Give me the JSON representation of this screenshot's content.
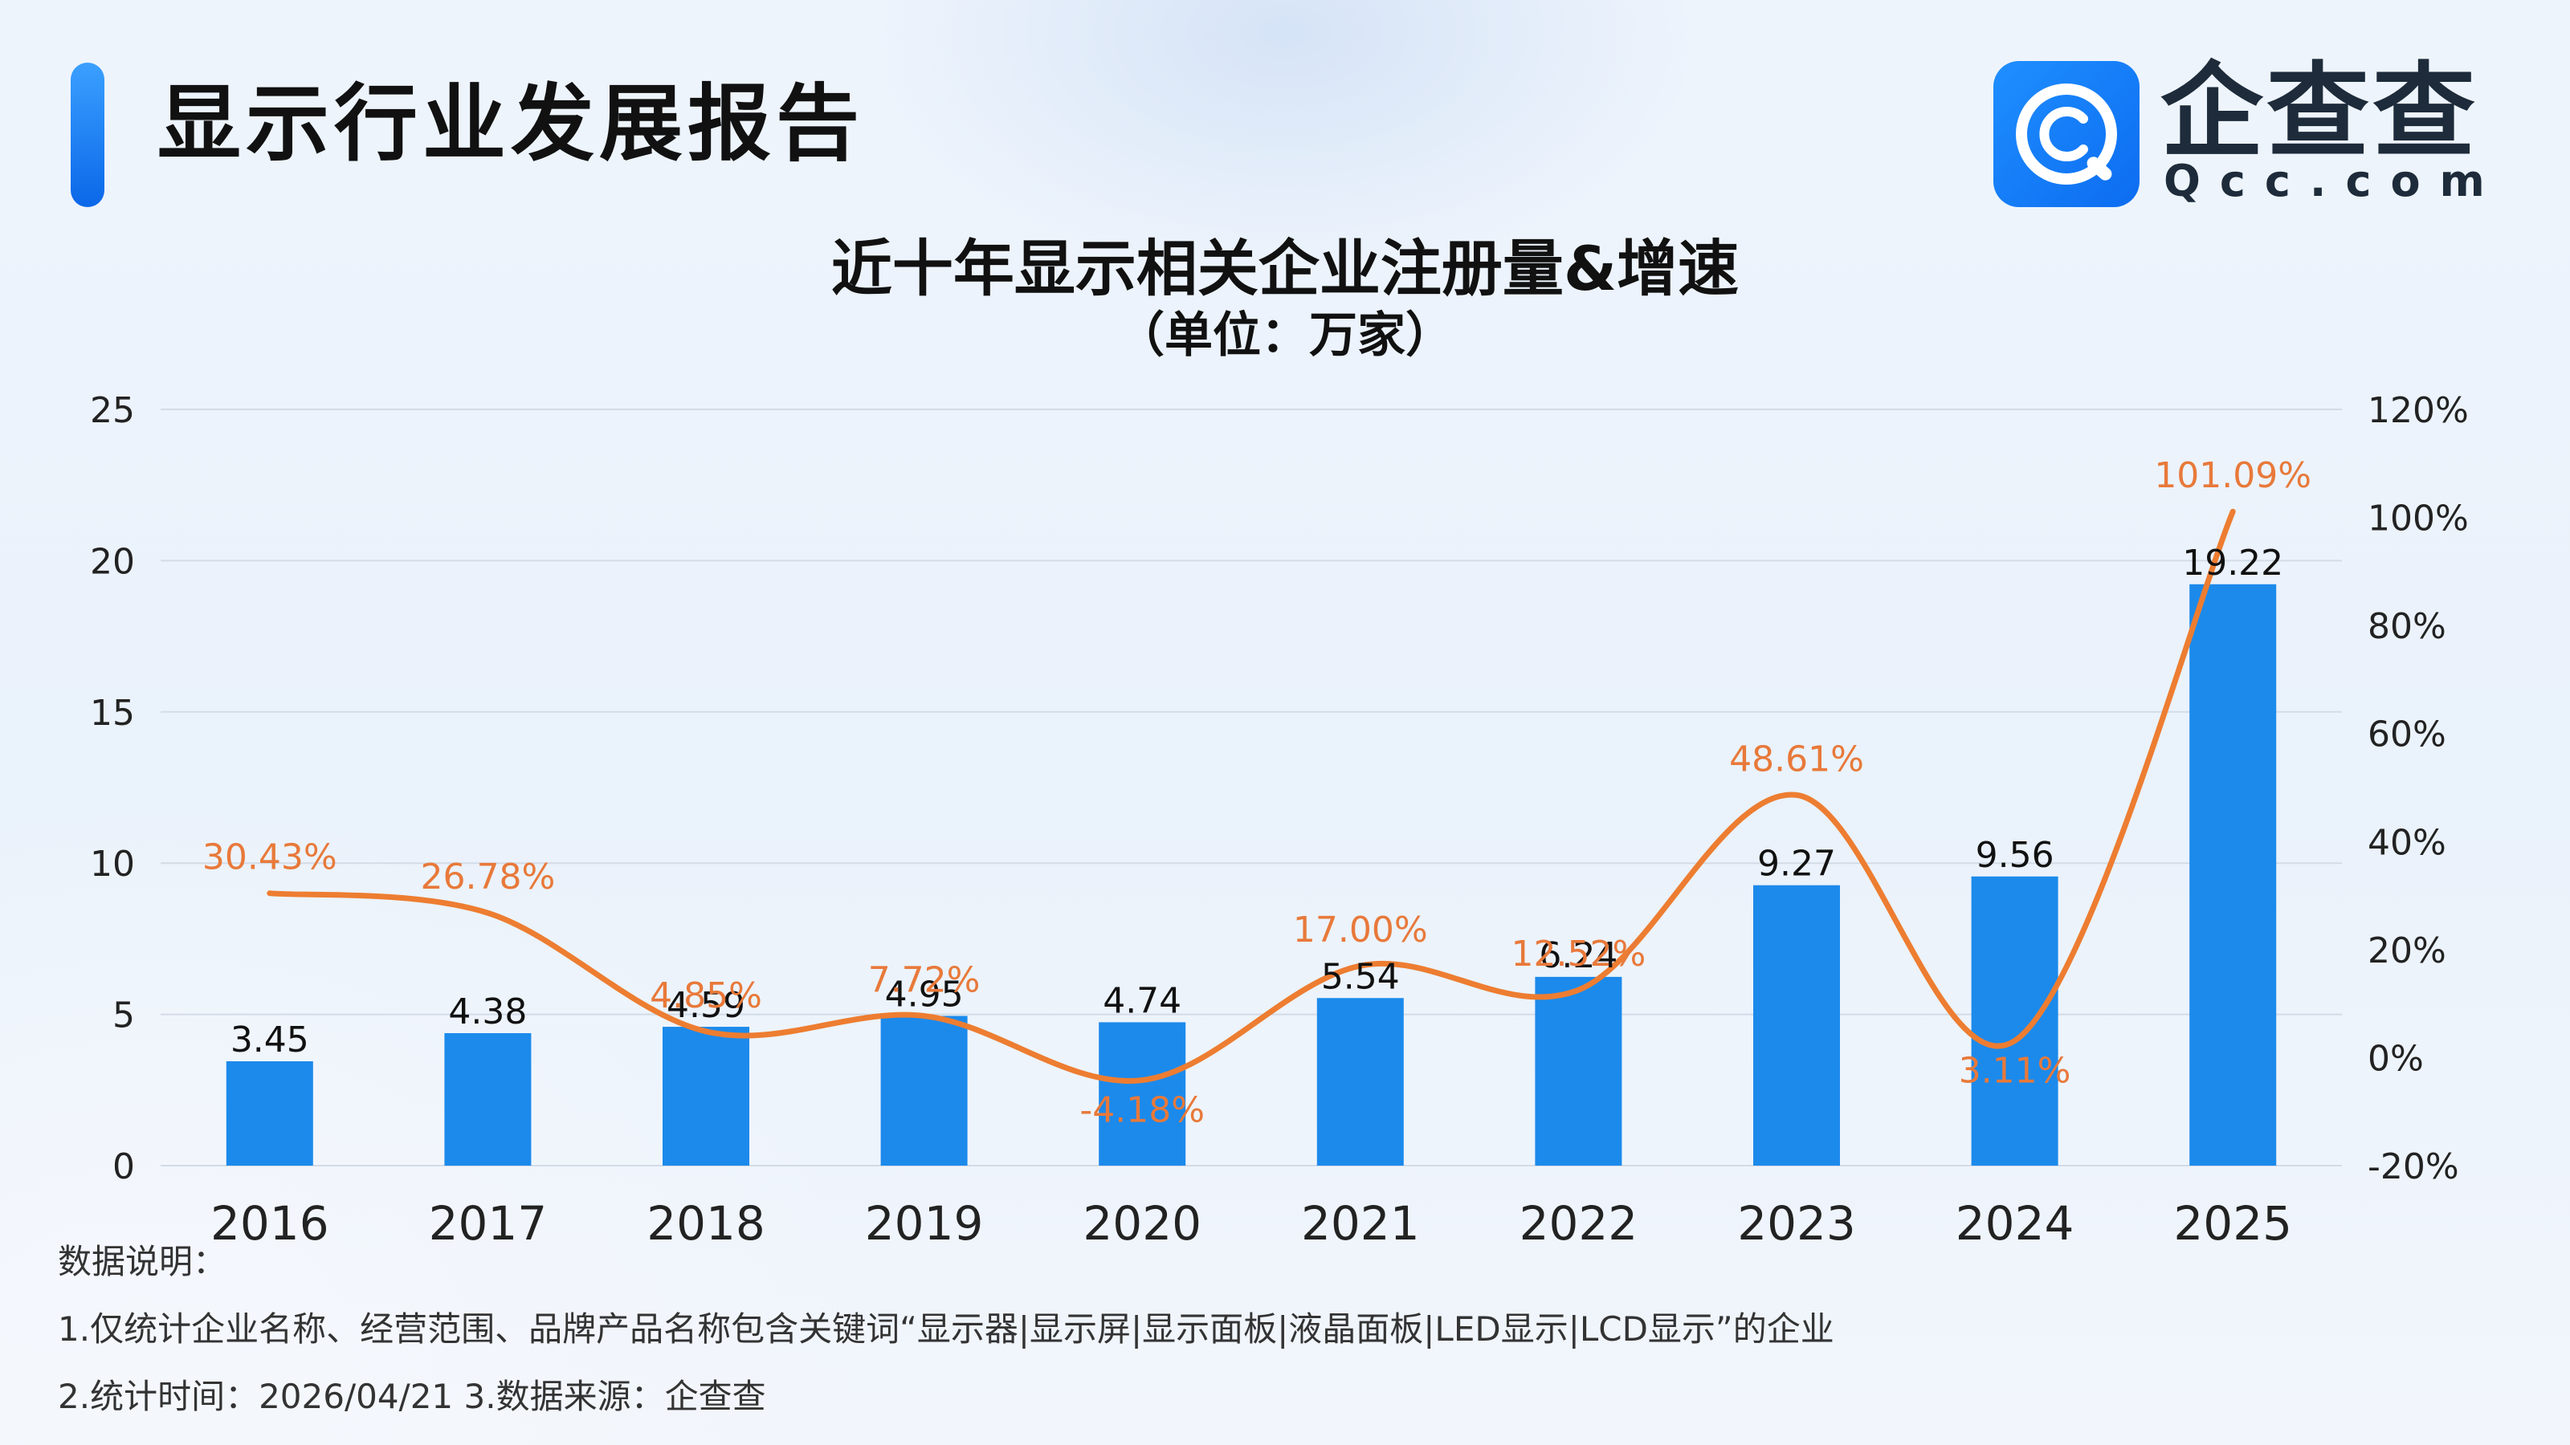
{
  "header": {
    "title": "显示行业发展报告",
    "logo_name": "企查查",
    "logo_domain": "Qcc.com",
    "logo_icon": "qcc-magnifier-icon"
  },
  "colors": {
    "accent": "#1a7fe6",
    "bar": "#1c8aeb",
    "line": "#ed7d31",
    "growth_label": "#e8793a"
  },
  "chart_data": {
    "type": "bar",
    "title": "近十年显示相关企业注册量&增速",
    "subtitle": "（单位：万家）",
    "categories": [
      "2016",
      "2017",
      "2018",
      "2019",
      "2020",
      "2021",
      "2022",
      "2023",
      "2024",
      "2025"
    ],
    "series": [
      {
        "type": "bar",
        "axis": "left",
        "values": [
          3.45,
          4.38,
          4.59,
          4.95,
          4.74,
          5.54,
          6.24,
          9.27,
          9.56,
          19.22
        ],
        "labels": [
          "3.45",
          "4.38",
          "4.59",
          "4.95",
          "4.74",
          "5.54",
          "6.24",
          "9.27",
          "9.56",
          "19.22"
        ]
      },
      {
        "type": "line",
        "axis": "right",
        "smooth": true,
        "values": [
          30.43,
          26.78,
          4.85,
          7.72,
          -4.18,
          17.0,
          12.52,
          48.61,
          3.11,
          101.09
        ],
        "labels": [
          "30.43%",
          "26.78%",
          "4.85%",
          "7.72%",
          "-4.18%",
          "17.00%",
          "12.52%",
          "48.61%",
          "3.11%",
          "101.09%"
        ]
      }
    ],
    "y_left": {
      "range": [
        0,
        25
      ],
      "ticks": [
        "0",
        "5",
        "10",
        "15",
        "20",
        "25"
      ]
    },
    "y_right": {
      "range": [
        -20,
        120
      ],
      "ticks": [
        "-20%",
        "0%",
        "20%",
        "40%",
        "60%",
        "80%",
        "100%",
        "120%"
      ]
    },
    "grid": true,
    "legend": "none"
  },
  "notes": {
    "heading": "数据说明：",
    "line1": "1.仅统计企业名称、经营范围、品牌产品名称包含关键词“显示器|显示屏|显示面板|液晶面板|LED显示|LCD显示”的企业",
    "line2": "2.统计时间：2026/04/21    3.数据来源：企查查"
  }
}
